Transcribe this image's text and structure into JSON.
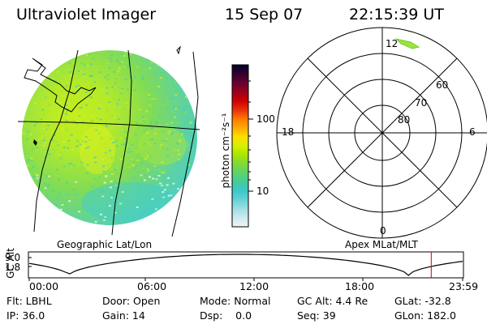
{
  "header": {
    "instrument": "Ultraviolet Imager",
    "date": "15 Sep 07",
    "time": "22:15:39 UT"
  },
  "geo_panel": {
    "label": "Geographic Lat/Lon"
  },
  "colorbar": {
    "label": "photon cm⁻²s⁻¹",
    "ticks": [
      "100",
      "10"
    ],
    "colors": [
      "#000033",
      "#33002a",
      "#660033",
      "#99001a",
      "#cc0000",
      "#e8300c",
      "#ff7700",
      "#ffaa00",
      "#ffdd00",
      "#d8f000",
      "#a8e600",
      "#7fd93a",
      "#5fd36a",
      "#44cc9a",
      "#3cc8c8",
      "#66d2d8",
      "#a0dde6",
      "#cfe9ef",
      "#eef6f8"
    ]
  },
  "polar_panel": {
    "label": "Apex MLat/MLT",
    "mlt_labels": {
      "top": "12",
      "left": "18",
      "right": "6",
      "bottom": "0"
    },
    "lat_labels": [
      "60",
      "70",
      "80"
    ]
  },
  "altitude_plot": {
    "ylabel": "GC Alt",
    "yticks": [
      "9.0",
      "1.8"
    ],
    "xticks": [
      "00:00",
      "06:00",
      "12:00",
      "18:00",
      "23:59"
    ],
    "current_marker_hours": 22.26
  },
  "status": {
    "flt": "Flt: LBHL",
    "door": "Door: Open",
    "mode": "Mode: Normal",
    "gc_alt": "GC Alt: 4.4 Re",
    "glat": "GLat: -32.8",
    "ip": "IP: 36.0",
    "gain": "Gain: 14",
    "dsp": "Dsp:    0.0",
    "seq": "Seq: 39",
    "glon": "GLon: 182.0"
  }
}
